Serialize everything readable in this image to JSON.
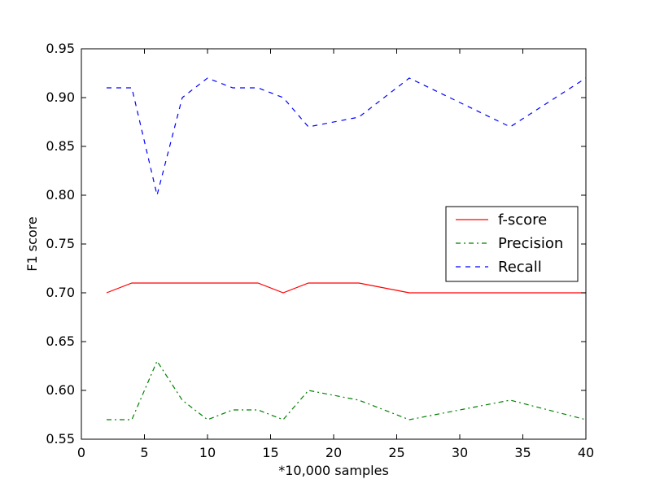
{
  "chart_data": {
    "type": "line",
    "title": "",
    "xlabel": "*10,000 samples",
    "ylabel": "F1 score",
    "xlim": [
      0,
      40
    ],
    "ylim": [
      0.55,
      0.95
    ],
    "xticks": [
      0,
      5,
      10,
      15,
      20,
      25,
      30,
      35,
      40
    ],
    "yticks": [
      0.55,
      0.6,
      0.65,
      0.7,
      0.75,
      0.8,
      0.85,
      0.9,
      0.95
    ],
    "xtick_labels": [
      "0",
      "5",
      "10",
      "15",
      "20",
      "25",
      "30",
      "35",
      "40"
    ],
    "ytick_labels": [
      "0.55",
      "0.60",
      "0.65",
      "0.70",
      "0.75",
      "0.80",
      "0.85",
      "0.90",
      "0.95"
    ],
    "grid": false,
    "legend_position": "center-right",
    "series": [
      {
        "name": "f-score",
        "color": "#ff0000",
        "style": "solid",
        "x": [
          2,
          4,
          6,
          8,
          10,
          12,
          14,
          16,
          18,
          22,
          26,
          34,
          40
        ],
        "y": [
          0.7,
          0.71,
          0.71,
          0.71,
          0.71,
          0.71,
          0.71,
          0.7,
          0.71,
          0.71,
          0.7,
          0.7,
          0.7
        ]
      },
      {
        "name": "Precision",
        "color": "#008000",
        "style": "dashdot",
        "x": [
          2,
          4,
          6,
          8,
          10,
          12,
          14,
          16,
          18,
          22,
          26,
          34,
          40
        ],
        "y": [
          0.57,
          0.57,
          0.63,
          0.59,
          0.57,
          0.58,
          0.58,
          0.57,
          0.6,
          0.59,
          0.57,
          0.59,
          0.57
        ]
      },
      {
        "name": "Recall",
        "color": "#0000ff",
        "style": "dashed",
        "x": [
          2,
          4,
          6,
          8,
          10,
          12,
          14,
          16,
          18,
          22,
          26,
          34,
          40
        ],
        "y": [
          0.91,
          0.91,
          0.8,
          0.9,
          0.92,
          0.91,
          0.91,
          0.9,
          0.87,
          0.88,
          0.92,
          0.87,
          0.92
        ]
      }
    ]
  }
}
